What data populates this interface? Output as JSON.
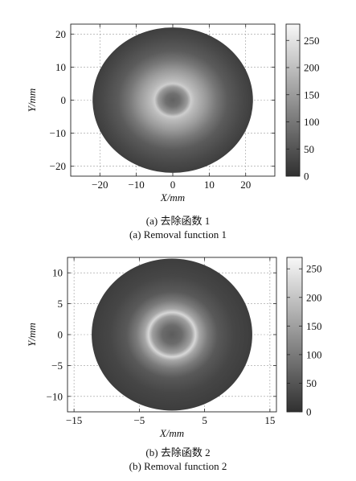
{
  "captions": {
    "p1_cn": "(a) 去除函数 1",
    "p1_en": "(a) Removal function 1",
    "p2_cn": "(b) 去除函数 2",
    "p2_en": "(b) Removal function 2"
  },
  "chart_data": [
    {
      "type": "heatmap",
      "title": "",
      "xlabel": "X/mm",
      "ylabel": "Y/mm",
      "xlim": [
        -28,
        28
      ],
      "ylim": [
        -23,
        23
      ],
      "xticks": [
        -20,
        -10,
        0,
        10,
        20
      ],
      "yticks": [
        -20,
        -10,
        0,
        10,
        20
      ],
      "grid": true,
      "colormap": "gray",
      "colorbar": {
        "range": [
          0,
          280
        ],
        "ticks": [
          0,
          50,
          100,
          150,
          200,
          250
        ]
      },
      "spot": {
        "shape": "disk",
        "center": [
          0,
          0
        ],
        "radius": 22,
        "profile": [
          {
            "r": 0,
            "v": 70
          },
          {
            "r": 2,
            "v": 90
          },
          {
            "r": 4,
            "v": 150
          },
          {
            "r": 5,
            "v": 220
          },
          {
            "r": 6,
            "v": 195
          },
          {
            "r": 9,
            "v": 150
          },
          {
            "r": 12,
            "v": 100
          },
          {
            "r": 15,
            "v": 60
          },
          {
            "r": 19,
            "v": 35
          },
          {
            "r": 22,
            "v": 20
          }
        ]
      }
    },
    {
      "type": "heatmap",
      "title": "",
      "xlabel": "X/mm",
      "ylabel": "Y/mm",
      "xlim": [
        -16,
        16
      ],
      "ylim": [
        -12.5,
        12.5
      ],
      "xticks": [
        -15,
        -5,
        5,
        15
      ],
      "yticks": [
        -10,
        -5,
        0,
        5,
        10
      ],
      "grid": true,
      "colormap": "gray",
      "colorbar": {
        "range": [
          0,
          270
        ],
        "ticks": [
          0,
          50,
          100,
          150,
          200,
          250
        ]
      },
      "spot": {
        "shape": "disk",
        "center": [
          0,
          0
        ],
        "radius": 12.3,
        "profile": [
          {
            "r": 0,
            "v": 60
          },
          {
            "r": 1.5,
            "v": 80
          },
          {
            "r": 3.0,
            "v": 150
          },
          {
            "r": 3.6,
            "v": 225
          },
          {
            "r": 4.2,
            "v": 160
          },
          {
            "r": 5.5,
            "v": 100
          },
          {
            "r": 7.0,
            "v": 55
          },
          {
            "r": 9.5,
            "v": 30
          },
          {
            "r": 12.3,
            "v": 18
          }
        ]
      }
    }
  ]
}
